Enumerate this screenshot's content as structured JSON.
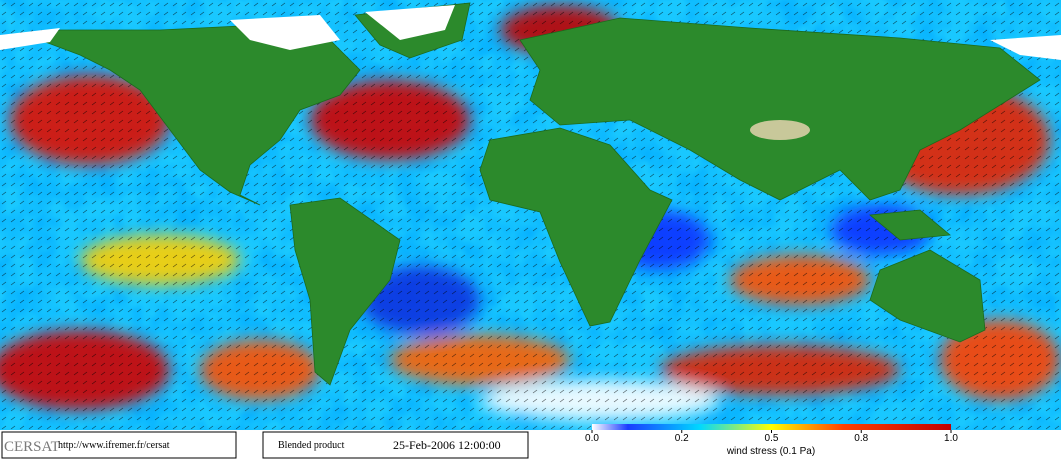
{
  "footer": {
    "logo": "CERSAT",
    "url": "http://www.ifremer.fr/cersat",
    "product": "Blended product",
    "date": "25-Feb-2006 12:00:00"
  },
  "colorbar": {
    "ticks": [
      "0.0",
      "0.2",
      "0.5",
      "0.8",
      "1.0"
    ],
    "label": "wind stress (0.1 Pa)"
  }
}
